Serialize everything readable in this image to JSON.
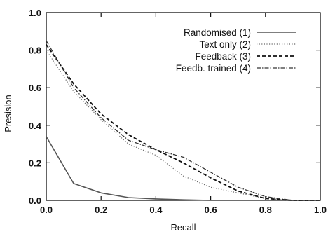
{
  "chart_data": {
    "type": "line",
    "title": "",
    "xlabel": "Recall",
    "ylabel": "Presision",
    "xlim": [
      0,
      1
    ],
    "ylim": [
      0,
      1
    ],
    "x_ticks": [
      "0.0",
      "0.2",
      "0.4",
      "0.6",
      "0.8",
      "1.0"
    ],
    "y_ticks": [
      "0.0",
      "0.2",
      "0.4",
      "0.6",
      "0.8",
      "1.0"
    ],
    "grid": false,
    "legend_position": "top-right",
    "series": [
      {
        "name": "Randomised (1)",
        "style": "solid",
        "color": "#555555",
        "x": [
          0.0,
          0.1,
          0.2,
          0.3,
          0.4,
          0.5,
          0.6,
          0.7,
          0.8,
          0.9,
          1.0
        ],
        "y": [
          0.34,
          0.09,
          0.04,
          0.015,
          0.008,
          0.003,
          0.0,
          0.0,
          0.0,
          0.0,
          0.0
        ]
      },
      {
        "name": "Text only (2)",
        "style": "dotted",
        "color": "#666666",
        "x": [
          0.0,
          0.1,
          0.2,
          0.3,
          0.4,
          0.5,
          0.6,
          0.7,
          0.8,
          0.9,
          1.0
        ],
        "y": [
          0.8,
          0.58,
          0.43,
          0.3,
          0.24,
          0.13,
          0.07,
          0.04,
          0.01,
          0.0,
          0.0
        ]
      },
      {
        "name": "Feedback (3)",
        "style": "dashed",
        "color": "#111111",
        "x": [
          0.0,
          0.1,
          0.2,
          0.3,
          0.4,
          0.5,
          0.6,
          0.7,
          0.8,
          0.9,
          1.0
        ],
        "y": [
          0.83,
          0.62,
          0.46,
          0.35,
          0.27,
          0.2,
          0.12,
          0.05,
          0.01,
          0.0,
          0.0
        ]
      },
      {
        "name": "Feedb. trained (4)",
        "style": "dashdot",
        "color": "#333333",
        "x": [
          0.0,
          0.1,
          0.2,
          0.3,
          0.4,
          0.5,
          0.6,
          0.7,
          0.8,
          0.9,
          1.0
        ],
        "y": [
          0.85,
          0.6,
          0.44,
          0.32,
          0.27,
          0.23,
          0.15,
          0.07,
          0.02,
          0.0,
          0.0
        ]
      }
    ]
  }
}
